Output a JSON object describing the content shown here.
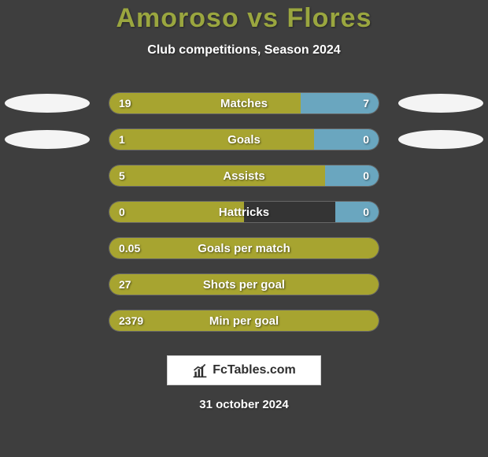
{
  "background_color": "#3e3e3e",
  "title": {
    "text": "Amoroso vs Flores",
    "color": "#9aa63f",
    "fontsize": 34
  },
  "subtitle": {
    "text": "Club competitions, Season 2024",
    "color": "#ffffff",
    "fontsize": 16
  },
  "players": {
    "left_ellipse_color": "#f4f4f4",
    "right_ellipse_color": "#f4f4f4"
  },
  "bar_style": {
    "left_color": "#a7a430",
    "right_color": "#6aa6bf",
    "track_width": 344,
    "track_height": 28,
    "border_radius": 14,
    "label_color": "#ffffff",
    "value_color": "#ffffff",
    "label_fontsize": 15,
    "value_fontsize": 14
  },
  "rows": [
    {
      "label": "Matches",
      "left_value": "19",
      "right_value": "7",
      "left_pct": 71,
      "right_pct": 29,
      "show_ellipses": true
    },
    {
      "label": "Goals",
      "left_value": "1",
      "right_value": "0",
      "left_pct": 76,
      "right_pct": 24,
      "show_ellipses": true
    },
    {
      "label": "Assists",
      "left_value": "5",
      "right_value": "0",
      "left_pct": 80,
      "right_pct": 20,
      "show_ellipses": false
    },
    {
      "label": "Hattricks",
      "left_value": "0",
      "right_value": "0",
      "left_pct": 50,
      "right_pct": 16,
      "show_ellipses": false
    },
    {
      "label": "Goals per match",
      "left_value": "0.05",
      "right_value": "",
      "left_pct": 100,
      "right_pct": 0,
      "show_ellipses": false
    },
    {
      "label": "Shots per goal",
      "left_value": "27",
      "right_value": "",
      "left_pct": 100,
      "right_pct": 0,
      "show_ellipses": false
    },
    {
      "label": "Min per goal",
      "left_value": "2379",
      "right_value": "",
      "left_pct": 100,
      "right_pct": 0,
      "show_ellipses": false
    }
  ],
  "logo": {
    "text": "FcTables.com",
    "box_bg": "#ffffff",
    "box_border": "#cfcfcf",
    "text_color": "#2f2f2f",
    "icon_color": "#2f2f2f"
  },
  "date": {
    "text": "31 october 2024",
    "color": "#ffffff",
    "fontsize": 15
  }
}
